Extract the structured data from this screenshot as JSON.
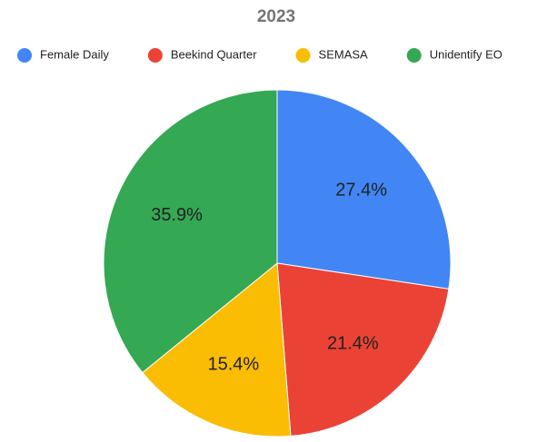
{
  "chart_data": {
    "type": "pie",
    "title": "2023",
    "categories": [
      "Female Daily",
      "Beekind Quarter",
      "SEMASA",
      "Unidentify EO"
    ],
    "values": [
      27.4,
      21.4,
      15.4,
      35.9
    ],
    "value_labels": [
      "27.4%",
      "21.4%",
      "15.4%",
      "35.9%"
    ],
    "colors": [
      "#4285f4",
      "#ea4335",
      "#fbbc04",
      "#34a853"
    ],
    "legend": "top"
  }
}
